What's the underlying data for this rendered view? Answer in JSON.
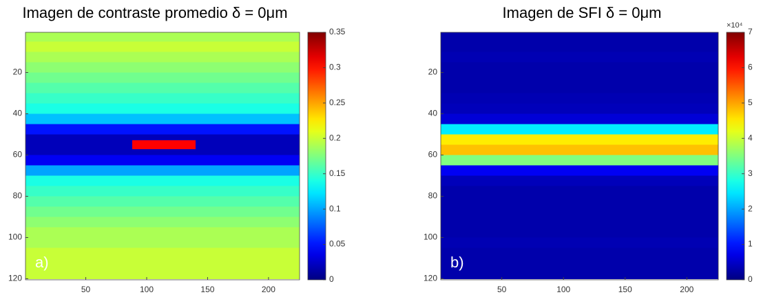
{
  "chart_data": [
    {
      "type": "heatmap",
      "title": "Imagen de contraste promedio δ = 0μm",
      "panel_label": "a)",
      "colormap": "jet",
      "y": [
        2.5,
        7.5,
        12.5,
        17.5,
        22.5,
        27.5,
        32.5,
        37.5,
        42.5,
        47.5,
        52.5,
        57.5,
        62.5,
        67.5,
        72.5,
        77.5,
        82.5,
        87.5,
        92.5,
        97.5,
        102.5,
        107.5,
        112.5,
        117.5
      ],
      "values": [
        0.19,
        0.2,
        0.19,
        0.18,
        0.17,
        0.16,
        0.15,
        0.14,
        0.11,
        0.05,
        0.02,
        0.02,
        0.04,
        0.1,
        0.14,
        0.15,
        0.16,
        0.17,
        0.18,
        0.19,
        0.19,
        0.2,
        0.2,
        0.2
      ],
      "xlim": [
        0.5,
        225.5
      ],
      "xticks": [
        50,
        100,
        150,
        200
      ],
      "ylim": [
        0.5,
        120.5
      ],
      "yticks": [
        20,
        40,
        60,
        80,
        100,
        120
      ],
      "clim": [
        0,
        0.35
      ],
      "cticks": [
        0,
        0.05,
        0.1,
        0.15,
        0.2,
        0.25,
        0.3,
        0.35
      ]
    },
    {
      "type": "heatmap",
      "title": "Imagen de SFI δ = 0μm",
      "panel_label": "b)",
      "colormap": "jet",
      "y": [
        2.5,
        7.5,
        12.5,
        17.5,
        22.5,
        27.5,
        32.5,
        37.5,
        42.5,
        47.5,
        52.5,
        57.5,
        62.5,
        67.5,
        72.5,
        77.5,
        82.5,
        87.5,
        92.5,
        97.5,
        102.5,
        107.5,
        112.5,
        117.5
      ],
      "values": [
        0.3,
        0.3,
        0.35,
        0.3,
        0.3,
        0.3,
        0.35,
        0.4,
        0.6,
        2.5,
        4.5,
        4.8,
        3.5,
        0.8,
        0.4,
        0.3,
        0.3,
        0.3,
        0.3,
        0.3,
        0.35,
        0.3,
        0.3,
        0.3
      ],
      "xlim": [
        0.5,
        225.5
      ],
      "xticks": [
        50,
        100,
        150,
        200
      ],
      "ylim": [
        0.5,
        120.5
      ],
      "yticks": [
        20,
        40,
        60,
        80,
        100,
        120
      ],
      "clim": [
        0,
        7
      ],
      "cticks": [
        0,
        1,
        2,
        3,
        4,
        5,
        6,
        7
      ],
      "colorbar_exponent": "×10⁴"
    }
  ]
}
